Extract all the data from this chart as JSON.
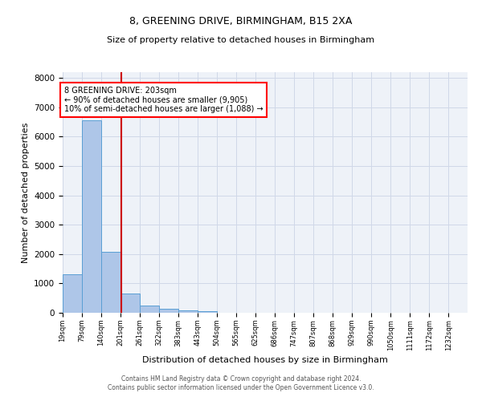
{
  "title_line1": "8, GREENING DRIVE, BIRMINGHAM, B15 2XA",
  "title_line2": "Size of property relative to detached houses in Birmingham",
  "xlabel": "Distribution of detached houses by size in Birmingham",
  "ylabel": "Number of detached properties",
  "footer_line1": "Contains HM Land Registry data © Crown copyright and database right 2024.",
  "footer_line2": "Contains public sector information licensed under the Open Government Licence v3.0.",
  "annotation_line1": "8 GREENING DRIVE: 203sqm",
  "annotation_line2": "← 90% of detached houses are smaller (9,905)",
  "annotation_line3": "10% of semi-detached houses are larger (1,088) →",
  "bar_left_edges": [
    19,
    79,
    140,
    201,
    261,
    322,
    383,
    443,
    504,
    565,
    625,
    686,
    747,
    807,
    868,
    929,
    990,
    1050,
    1111,
    1172
  ],
  "bar_widths": [
    60,
    61,
    61,
    60,
    61,
    61,
    60,
    61,
    61,
    60,
    61,
    61,
    60,
    61,
    61,
    61,
    60,
    61,
    61,
    60
  ],
  "bar_heights": [
    1300,
    6550,
    2080,
    660,
    250,
    130,
    90,
    60,
    0,
    0,
    0,
    0,
    0,
    0,
    0,
    0,
    0,
    0,
    0,
    0
  ],
  "bar_color": "#aec6e8",
  "bar_edge_color": "#5a9fd4",
  "grid_color": "#d0d8e8",
  "background_color": "#eef2f8",
  "vline_x": 203,
  "vline_color": "#cc0000",
  "ylim": [
    0,
    8200
  ],
  "yticks": [
    0,
    1000,
    2000,
    3000,
    4000,
    5000,
    6000,
    7000,
    8000
  ],
  "tick_labels": [
    "19sqm",
    "79sqm",
    "140sqm",
    "201sqm",
    "261sqm",
    "322sqm",
    "383sqm",
    "443sqm",
    "504sqm",
    "565sqm",
    "625sqm",
    "686sqm",
    "747sqm",
    "807sqm",
    "868sqm",
    "929sqm",
    "990sqm",
    "1050sqm",
    "1111sqm",
    "1172sqm",
    "1232sqm"
  ],
  "tick_positions": [
    19,
    79,
    140,
    201,
    261,
    322,
    383,
    443,
    504,
    565,
    625,
    686,
    747,
    807,
    868,
    929,
    990,
    1050,
    1111,
    1172,
    1232
  ],
  "xlim": [
    19,
    1292
  ],
  "title1_fontsize": 9,
  "title2_fontsize": 8,
  "ylabel_fontsize": 8,
  "xlabel_fontsize": 8,
  "ytick_fontsize": 7.5,
  "xtick_fontsize": 6,
  "annotation_fontsize": 7,
  "footer_fontsize": 5.5
}
